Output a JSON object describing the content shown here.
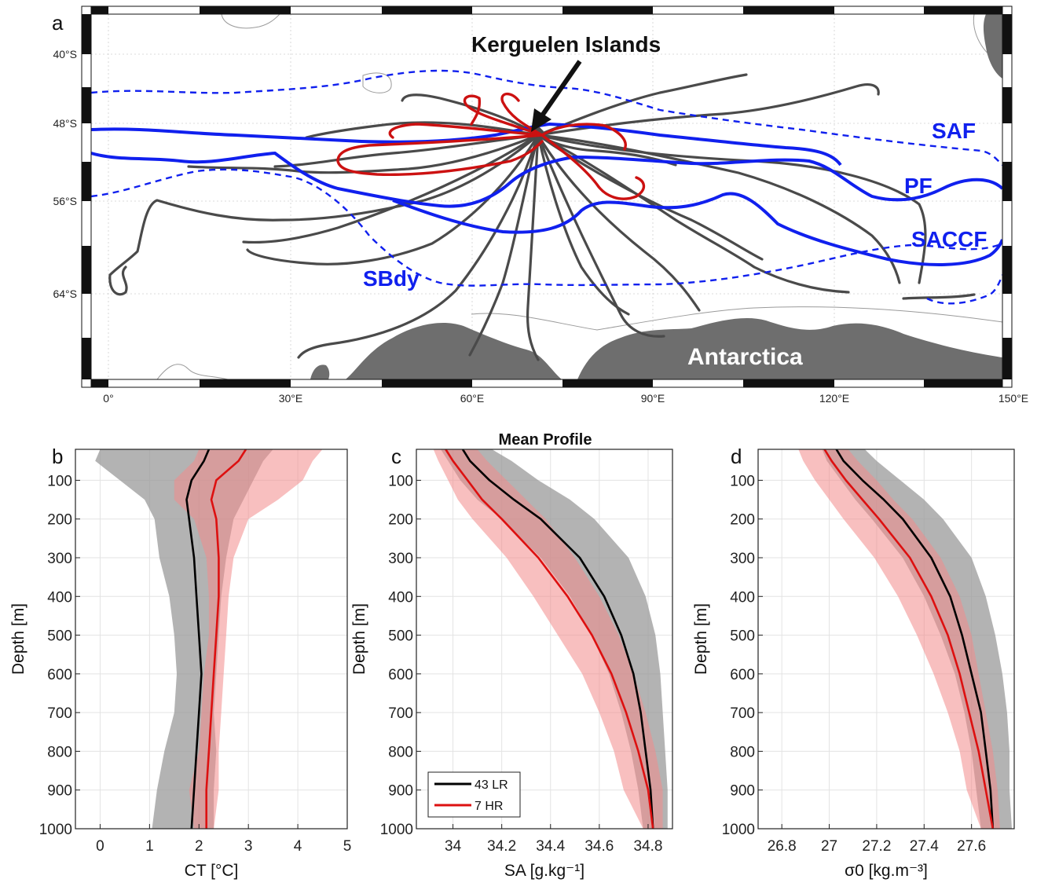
{
  "colors": {
    "low_res": "#000000",
    "high_res": "#dd1010",
    "tracks": "#4a4a4a",
    "fronts": "#1020ee",
    "land": "#6e6e6e",
    "band_gray": "#9a9a9a",
    "band_red": "#f28a8a"
  },
  "map": {
    "panel_letter": "a",
    "kerguelen_label": "Kerguelen Islands",
    "antarctica_label": "Antarctica",
    "front_labels": {
      "saf": "SAF",
      "pf": "PF",
      "saccf": "SACCF",
      "sbdy": "SBdy"
    },
    "lon_ticks": [
      "0°",
      "30°E",
      "60°E",
      "90°E",
      "120°E",
      "150°E"
    ],
    "lat_ticks": [
      "40°S",
      "48°S",
      "56°S",
      "64°S"
    ]
  },
  "profiles_title": "Mean Profile",
  "legend": {
    "low_res": "43 LR",
    "high_res": "7 HR"
  },
  "chart_data": [
    {
      "type": "line",
      "panel": "b",
      "xlabel": "CT [°C]",
      "ylabel": "Depth [m]",
      "xlim": [
        -0.5,
        5
      ],
      "ylim": [
        1000,
        20
      ],
      "y_reversed": true,
      "grid": true,
      "xticks": [
        0,
        1,
        2,
        3,
        4,
        5
      ],
      "yticks": [
        100,
        200,
        300,
        400,
        500,
        600,
        700,
        800,
        900,
        1000
      ],
      "depth": [
        20,
        50,
        100,
        150,
        200,
        300,
        400,
        500,
        600,
        700,
        800,
        900,
        1000
      ],
      "series": [
        {
          "name": "43 LR",
          "mean": [
            2.2,
            2.1,
            1.85,
            1.75,
            1.8,
            1.9,
            1.95,
            2.0,
            2.05,
            2.0,
            1.95,
            1.9,
            1.85
          ],
          "lower": [
            0.0,
            -0.1,
            0.4,
            0.9,
            1.1,
            1.2,
            1.4,
            1.5,
            1.55,
            1.5,
            1.3,
            1.15,
            1.05
          ],
          "upper": [
            3.5,
            3.3,
            3.1,
            2.9,
            2.7,
            2.55,
            2.45,
            2.4,
            2.35,
            2.3,
            2.35,
            2.3,
            2.3
          ]
        },
        {
          "name": "7 HR",
          "mean": [
            2.95,
            2.8,
            2.35,
            2.25,
            2.35,
            2.4,
            2.4,
            2.35,
            2.3,
            2.25,
            2.2,
            2.15,
            2.15
          ],
          "lower": [
            2.0,
            1.9,
            1.5,
            1.5,
            1.9,
            2.15,
            2.2,
            2.2,
            2.1,
            2.05,
            2.0,
            1.8,
            1.9
          ],
          "upper": [
            4.5,
            4.3,
            4.1,
            3.6,
            3.0,
            2.7,
            2.6,
            2.55,
            2.5,
            2.45,
            2.4,
            2.4,
            2.3
          ]
        }
      ]
    },
    {
      "type": "line",
      "panel": "c",
      "xlabel": "SA [g.kg⁻¹]",
      "ylabel": "Depth [m]",
      "xlim": [
        33.85,
        34.9
      ],
      "ylim": [
        1000,
        20
      ],
      "y_reversed": true,
      "grid": true,
      "xticks": [
        34,
        34.2,
        34.4,
        34.6,
        34.8
      ],
      "yticks": [
        100,
        200,
        300,
        400,
        500,
        600,
        700,
        800,
        900,
        1000
      ],
      "depth": [
        20,
        50,
        100,
        150,
        200,
        300,
        400,
        500,
        600,
        700,
        800,
        900,
        1000
      ],
      "series": [
        {
          "name": "43 LR",
          "mean": [
            34.04,
            34.07,
            34.15,
            34.25,
            34.36,
            34.52,
            34.62,
            34.69,
            34.74,
            34.77,
            34.79,
            34.81,
            34.82
          ],
          "lower": [
            33.95,
            33.98,
            34.03,
            34.1,
            34.2,
            34.36,
            34.48,
            34.57,
            34.64,
            34.69,
            34.73,
            34.76,
            34.78
          ],
          "upper": [
            34.16,
            34.24,
            34.35,
            34.48,
            34.58,
            34.72,
            34.79,
            34.83,
            34.85,
            34.86,
            34.87,
            34.88,
            34.88
          ]
        },
        {
          "name": "7 HR",
          "mean": [
            33.97,
            34.0,
            34.06,
            34.12,
            34.2,
            34.35,
            34.47,
            34.57,
            34.65,
            34.71,
            34.76,
            34.8,
            34.82
          ],
          "lower": [
            33.92,
            33.94,
            33.98,
            34.02,
            34.08,
            34.22,
            34.33,
            34.43,
            34.53,
            34.6,
            34.66,
            34.7,
            34.78
          ],
          "upper": [
            34.1,
            34.14,
            34.22,
            34.3,
            34.38,
            34.5,
            34.6,
            34.68,
            34.74,
            34.79,
            34.83,
            34.86,
            34.86
          ]
        }
      ]
    },
    {
      "type": "line",
      "panel": "d",
      "xlabel": "σ0 [kg.m⁻³]",
      "ylabel": "Depth [m]",
      "xlim": [
        26.7,
        27.78
      ],
      "ylim": [
        1000,
        20
      ],
      "y_reversed": true,
      "grid": true,
      "xticks": [
        26.8,
        27,
        27.2,
        27.4,
        27.6
      ],
      "yticks": [
        100,
        200,
        300,
        400,
        500,
        600,
        700,
        800,
        900,
        1000
      ],
      "depth": [
        20,
        50,
        100,
        150,
        200,
        300,
        400,
        500,
        600,
        700,
        800,
        900,
        1000
      ],
      "series": [
        {
          "name": "43 LR",
          "mean": [
            27.03,
            27.06,
            27.14,
            27.23,
            27.31,
            27.43,
            27.51,
            27.56,
            27.6,
            27.64,
            27.66,
            27.68,
            27.69
          ],
          "lower": [
            26.97,
            26.99,
            27.05,
            27.11,
            27.18,
            27.31,
            27.4,
            27.47,
            27.53,
            27.57,
            27.6,
            27.62,
            27.64
          ],
          "upper": [
            27.15,
            27.2,
            27.3,
            27.4,
            27.48,
            27.6,
            27.66,
            27.7,
            27.73,
            27.75,
            27.76,
            27.76,
            27.77
          ]
        },
        {
          "name": "7 HR",
          "mean": [
            26.98,
            27.01,
            27.07,
            27.14,
            27.21,
            27.34,
            27.43,
            27.5,
            27.55,
            27.59,
            27.63,
            27.66,
            27.69
          ],
          "lower": [
            26.87,
            26.89,
            26.94,
            27.0,
            27.06,
            27.19,
            27.29,
            27.37,
            27.44,
            27.5,
            27.55,
            27.58,
            27.64
          ],
          "upper": [
            27.08,
            27.12,
            27.2,
            27.27,
            27.35,
            27.47,
            27.55,
            27.6,
            27.63,
            27.66,
            27.69,
            27.71,
            27.72
          ]
        }
      ]
    }
  ]
}
